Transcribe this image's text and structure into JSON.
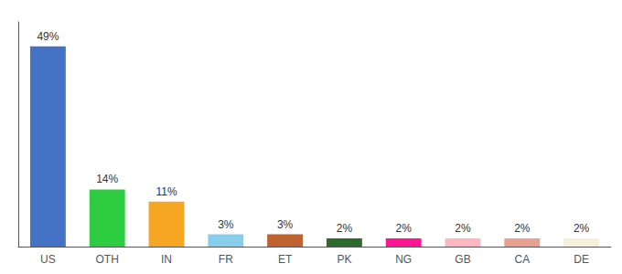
{
  "chart_data": {
    "type": "bar",
    "categories": [
      "US",
      "OTH",
      "IN",
      "FR",
      "ET",
      "PK",
      "NG",
      "GB",
      "CA",
      "DE"
    ],
    "values": [
      49,
      14,
      11,
      3,
      3,
      2,
      2,
      2,
      2,
      2
    ],
    "value_labels": [
      "49%",
      "14%",
      "11%",
      "3%",
      "3%",
      "2%",
      "2%",
      "2%",
      "2%",
      "2%"
    ],
    "colors": [
      "#4472c4",
      "#2ecc40",
      "#f5a623",
      "#87ceeb",
      "#c0622f",
      "#2d6a2d",
      "#ff1493",
      "#ffb6c1",
      "#e8a090",
      "#f5f0dc"
    ],
    "ylim": [
      0,
      55
    ],
    "grid": false,
    "data_labels": true,
    "tick_labels": "x"
  }
}
